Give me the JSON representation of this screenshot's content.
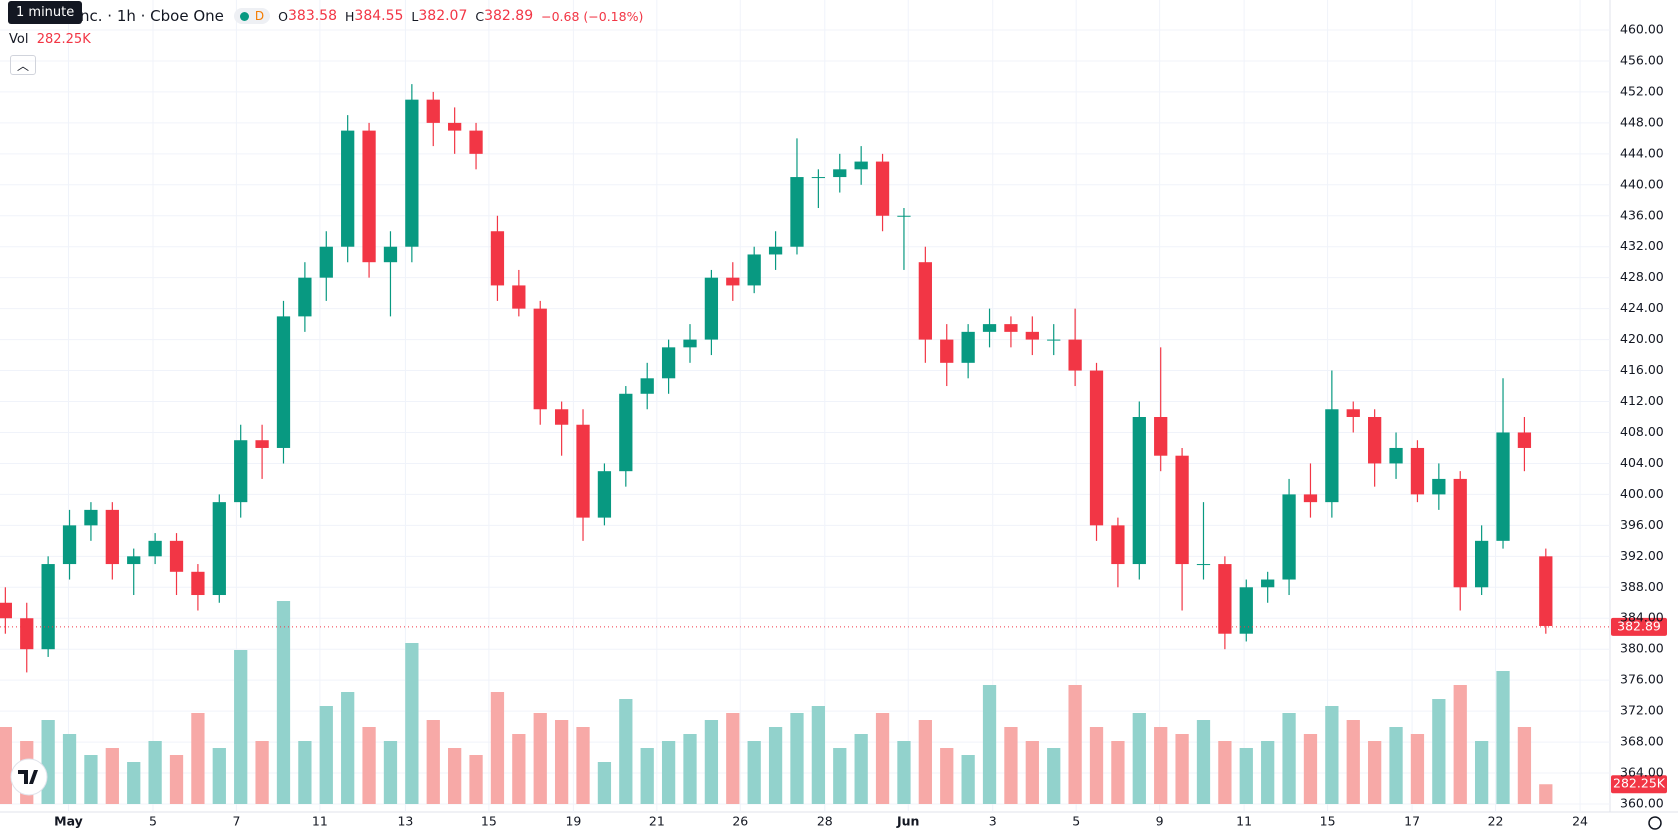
{
  "legend": {
    "tooltip": "1 minute",
    "symbol": "nc. · 1h · Cboe One",
    "badge": "D",
    "o_label": "O",
    "open": "383.58",
    "h_label": "H",
    "high": "384.55",
    "l_label": "L",
    "low": "382.07",
    "c_label": "C",
    "change": "−0.68 (−0.18%)",
    "vol_label": "Vol"
  },
  "chart_data": {
    "type": "candlestick",
    "up_color": "#089981",
    "down_color": "#f23645",
    "volume_up_color": "#92d2cc",
    "volume_down_color": "#f7a9a7",
    "grid": true,
    "last_price": 382.89,
    "volume_label": "282.25K",
    "xlim": [
      -0.25,
      75
    ],
    "xticks": [
      {
        "value": 2.95,
        "label": "May"
      },
      {
        "value": 6.9,
        "label": "5"
      },
      {
        "value": 10.8,
        "label": "7"
      },
      {
        "value": 14.7,
        "label": "11"
      },
      {
        "value": 18.7,
        "label": "13"
      },
      {
        "value": 22.6,
        "label": "15"
      },
      {
        "value": 26.55,
        "label": "19"
      },
      {
        "value": 30.45,
        "label": "21"
      },
      {
        "value": 34.35,
        "label": "26"
      },
      {
        "value": 38.3,
        "label": "28"
      },
      {
        "value": 42.2,
        "label": "Jun"
      },
      {
        "value": 46.15,
        "label": "3"
      },
      {
        "value": 50.05,
        "label": "5"
      },
      {
        "value": 53.95,
        "label": "9"
      },
      {
        "value": 57.9,
        "label": "11"
      },
      {
        "value": 61.8,
        "label": "15"
      },
      {
        "value": 65.75,
        "label": "17"
      },
      {
        "value": 69.65,
        "label": "22"
      },
      {
        "value": 73.6,
        "label": "24"
      }
    ],
    "ylim": [
      360,
      460
    ],
    "yticks": [
      {
        "value": 360,
        "label": "360.00"
      },
      {
        "value": 364,
        "label": "364.00"
      },
      {
        "value": 368,
        "label": "368.00"
      },
      {
        "value": 372,
        "label": "372.00"
      },
      {
        "value": 376,
        "label": "376.00"
      },
      {
        "value": 380,
        "label": "380.00"
      },
      {
        "value": 384,
        "label": "384.00"
      },
      {
        "value": 388,
        "label": "388.00"
      },
      {
        "value": 392,
        "label": "392.00"
      },
      {
        "value": 396,
        "label": "396.00"
      },
      {
        "value": 400,
        "label": "400.00"
      },
      {
        "value": 404,
        "label": "404.00"
      },
      {
        "value": 408,
        "label": "408.00"
      },
      {
        "value": 412,
        "label": "412.00"
      },
      {
        "value": 416,
        "label": "416.00"
      },
      {
        "value": 420,
        "label": "420.00"
      },
      {
        "value": 424,
        "label": "424.00"
      },
      {
        "value": 428,
        "label": "428.00"
      },
      {
        "value": 432,
        "label": "432.00"
      },
      {
        "value": 436,
        "label": "436.00"
      },
      {
        "value": 440,
        "label": "440.00"
      },
      {
        "value": 444,
        "label": "444.00"
      },
      {
        "value": 448,
        "label": "448.00"
      },
      {
        "value": 452,
        "label": "452.00"
      },
      {
        "value": 456,
        "label": "456.00"
      },
      {
        "value": 460,
        "label": "460.00"
      }
    ],
    "open": [
      386,
      384,
      380,
      391,
      396,
      398,
      391,
      392,
      394,
      390,
      387,
      399,
      407,
      406,
      423,
      428,
      432,
      447,
      430,
      432,
      451,
      448,
      447,
      434,
      427,
      424,
      411,
      409,
      397,
      403,
      413,
      415,
      419,
      420,
      428,
      427,
      431,
      432,
      441,
      441,
      442,
      443,
      436,
      430,
      420,
      417,
      421,
      422,
      421,
      420,
      420,
      416,
      396,
      391,
      410,
      405,
      391,
      391,
      382,
      388,
      389,
      400,
      399,
      411,
      410,
      404,
      406,
      400,
      402,
      388,
      394,
      408,
      392
    ],
    "high": [
      388,
      386,
      392,
      398,
      399,
      399,
      393,
      395,
      395,
      391,
      400,
      409,
      409,
      425,
      430,
      434,
      449,
      448,
      434,
      453,
      452,
      450,
      448,
      436,
      429,
      425,
      412,
      411,
      404,
      414,
      417,
      420,
      422,
      429,
      430,
      432,
      434,
      446,
      442,
      444,
      445,
      444,
      437,
      432,
      422,
      422,
      424,
      423,
      423,
      422,
      424,
      417,
      397,
      412,
      419,
      406,
      399,
      392,
      389,
      390,
      402,
      404,
      416,
      412,
      411,
      408,
      407,
      404,
      403,
      396,
      415,
      410,
      393
    ],
    "low": [
      382,
      377,
      379,
      389,
      394,
      389,
      387,
      391,
      387,
      385,
      386,
      397,
      402,
      404,
      421,
      425,
      430,
      428,
      423,
      430,
      445,
      444,
      442,
      425,
      423,
      409,
      405,
      394,
      396,
      401,
      411,
      413,
      417,
      418,
      425,
      426,
      429,
      431,
      437,
      439,
      440,
      434,
      429,
      417,
      414,
      415,
      419,
      419,
      418,
      418,
      414,
      394,
      388,
      389,
      403,
      385,
      389,
      380,
      381,
      386,
      387,
      397,
      397,
      408,
      401,
      402,
      399,
      398,
      385,
      387,
      393,
      403,
      382
    ],
    "close": [
      384,
      380,
      391,
      396,
      398,
      391,
      392,
      394,
      390,
      387,
      399,
      407,
      406,
      423,
      428,
      432,
      447,
      430,
      432,
      451,
      448,
      447,
      444,
      427,
      424,
      411,
      409,
      397,
      403,
      413,
      415,
      419,
      420,
      428,
      427,
      431,
      432,
      441,
      441,
      442,
      443,
      436,
      436,
      420,
      417,
      421,
      422,
      421,
      420,
      420,
      416,
      396,
      391,
      410,
      405,
      391,
      391,
      382,
      388,
      389,
      400,
      399,
      411,
      410,
      404,
      406,
      400,
      402,
      388,
      394,
      408,
      406,
      383
    ],
    "volume": [
      1100,
      900,
      1200,
      1000,
      700,
      800,
      600,
      900,
      700,
      1300,
      800,
      2200,
      900,
      2900,
      900,
      1400,
      1600,
      1100,
      900,
      2300,
      1200,
      800,
      700,
      1600,
      1000,
      1300,
      1200,
      1100,
      600,
      1500,
      800,
      900,
      1000,
      1200,
      1300,
      900,
      1100,
      1300,
      1400,
      800,
      1000,
      1300,
      900,
      1200,
      800,
      700,
      1700,
      1100,
      900,
      800,
      1700,
      1100,
      900,
      1300,
      1100,
      1000,
      1200,
      900,
      800,
      900,
      1300,
      1000,
      1400,
      1200,
      900,
      1100,
      1000,
      1500,
      1700,
      900,
      1900,
      1100,
      282.25
    ]
  }
}
